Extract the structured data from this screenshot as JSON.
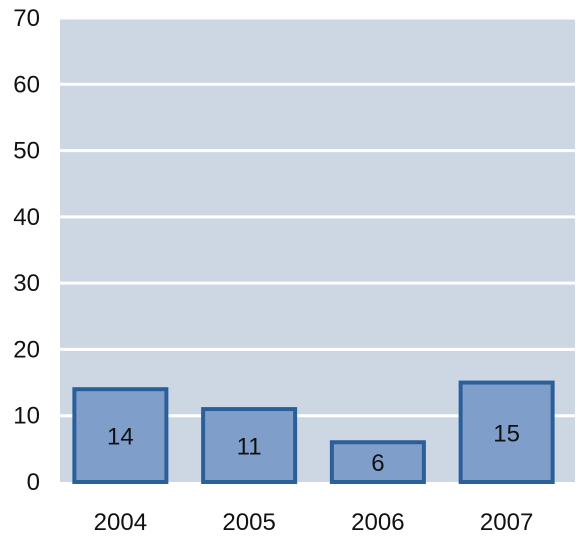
{
  "chart_data": {
    "type": "bar",
    "categories": [
      "2004",
      "2005",
      "2006",
      "2007"
    ],
    "values": [
      14,
      11,
      6,
      15
    ],
    "data_labels": [
      "14",
      "11",
      "6",
      "15"
    ],
    "title": "",
    "xlabel": "",
    "ylabel": "",
    "ylim": [
      0,
      70
    ],
    "y_ticks": [
      0,
      10,
      20,
      30,
      40,
      50,
      60,
      70
    ],
    "y_tick_labels": [
      "0",
      "10",
      "20",
      "30",
      "40",
      "50",
      "60",
      "70"
    ],
    "grid": true,
    "legend": "none",
    "colors": {
      "plot_background": "#cdd7e3",
      "grid": "#ffffff",
      "bar_fill": "#7f9fca",
      "bar_stroke": "#2b5f9a",
      "text": "#111111"
    }
  }
}
